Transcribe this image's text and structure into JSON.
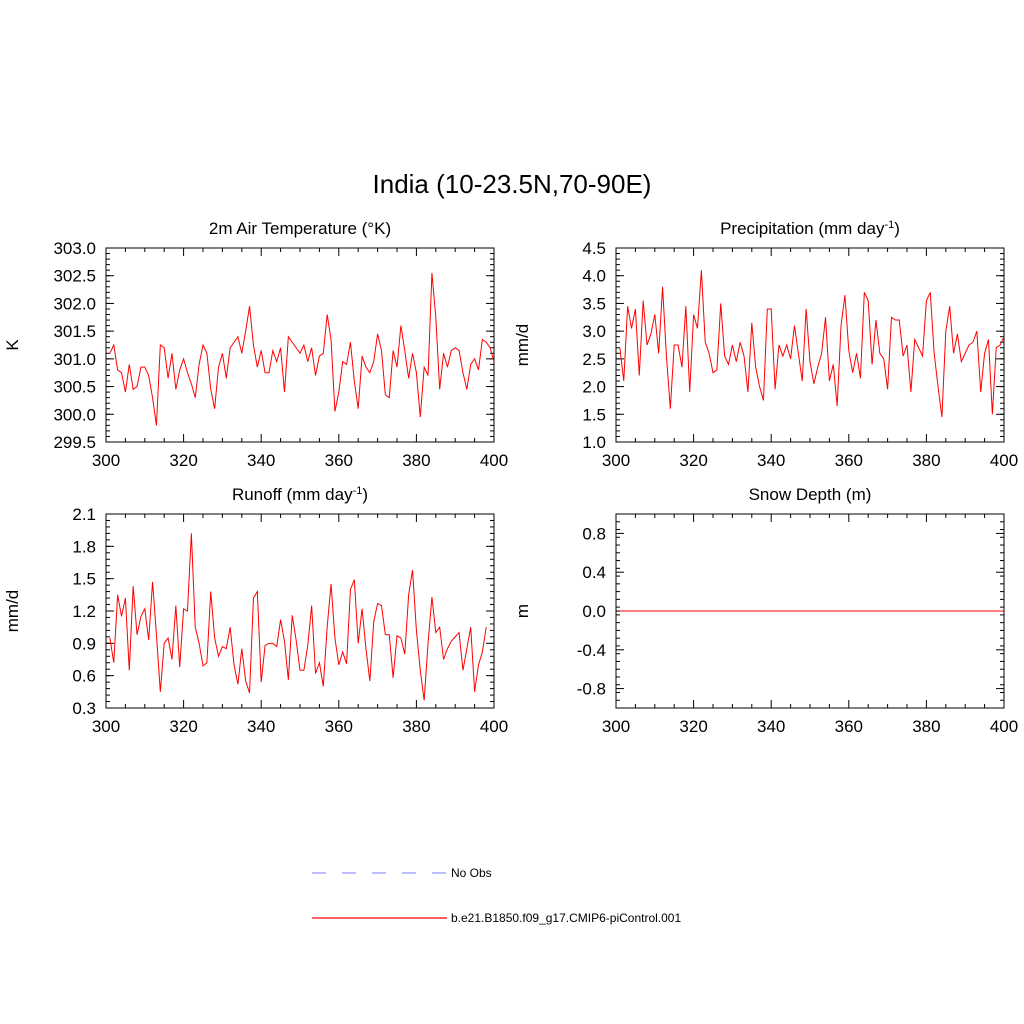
{
  "page_title": "India (10-23.5N,70-90E)",
  "colors": {
    "model_line": "#ff0000",
    "obs_line": "#9999ff",
    "axis": "#000000"
  },
  "chart_data": [
    {
      "type": "line",
      "title": "2m Air Temperature (°K)",
      "ylabel": "K",
      "xlim": [
        300,
        400
      ],
      "ylim": [
        299.5,
        303.0
      ],
      "xticks": [
        "300",
        "320",
        "340",
        "360",
        "380",
        "400"
      ],
      "yticks": [
        "299.5",
        "300.0",
        "300.5",
        "301.0",
        "301.5",
        "302.0",
        "302.5",
        "303.0"
      ],
      "ytick_values": [
        299.5,
        300.0,
        300.5,
        301.0,
        301.5,
        302.0,
        302.5,
        303.0
      ],
      "x_start": 301,
      "series": [
        {
          "name": "b.e21.B1850.f09_g17.CMIP6-piControl.001",
          "values": [
            301.1,
            301.25,
            300.8,
            300.75,
            300.4,
            300.9,
            300.45,
            300.5,
            300.85,
            300.85,
            300.7,
            300.3,
            299.8,
            301.25,
            301.2,
            300.65,
            301.1,
            300.45,
            300.8,
            301.0,
            300.75,
            300.55,
            300.3,
            300.9,
            301.25,
            301.1,
            300.45,
            300.1,
            300.85,
            301.1,
            300.65,
            301.2,
            301.3,
            301.4,
            301.1,
            301.5,
            301.95,
            301.25,
            300.85,
            301.15,
            300.75,
            300.75,
            301.15,
            300.95,
            301.2,
            300.4,
            301.4,
            301.3,
            301.2,
            301.1,
            301.25,
            300.95,
            301.2,
            300.7,
            301.05,
            301.1,
            301.8,
            301.35,
            300.05,
            300.4,
            300.95,
            300.9,
            301.3,
            300.6,
            300.1,
            301.05,
            300.85,
            300.75,
            300.95,
            301.45,
            301.15,
            300.35,
            300.3,
            301.15,
            300.85,
            301.6,
            301.15,
            300.65,
            301.1,
            300.75,
            299.95,
            300.85,
            300.7,
            302.55,
            301.75,
            300.45,
            301.1,
            300.85,
            301.15,
            301.2,
            301.15,
            300.75,
            300.45,
            300.9,
            301.0,
            300.8,
            301.35,
            301.3,
            301.2,
            300.95
          ]
        }
      ]
    },
    {
      "type": "line",
      "title": "Precipitation (mm day",
      "title_sup": "-1",
      "title_end": ")",
      "ylabel": "mm/d",
      "xlim": [
        300,
        400
      ],
      "ylim": [
        1.0,
        4.5
      ],
      "xticks": [
        "300",
        "320",
        "340",
        "360",
        "380",
        "400"
      ],
      "yticks": [
        "1.0",
        "1.5",
        "2.0",
        "2.5",
        "3.0",
        "3.5",
        "4.0",
        "4.5"
      ],
      "ytick_values": [
        1.0,
        1.5,
        2.0,
        2.5,
        3.0,
        3.5,
        4.0,
        4.5
      ],
      "x_start": 301,
      "series": [
        {
          "name": "b.e21.B1850.f09_g17.CMIP6-piControl.001",
          "values": [
            2.7,
            2.1,
            3.45,
            3.05,
            3.4,
            2.2,
            3.55,
            2.75,
            2.95,
            3.3,
            2.6,
            3.8,
            2.55,
            1.6,
            2.75,
            2.75,
            2.35,
            3.45,
            1.9,
            3.3,
            3.05,
            4.1,
            2.8,
            2.6,
            2.25,
            2.3,
            3.5,
            2.55,
            2.4,
            2.75,
            2.45,
            2.8,
            2.55,
            1.9,
            3.15,
            2.35,
            2.0,
            1.75,
            3.4,
            3.4,
            1.95,
            2.75,
            2.55,
            2.75,
            2.5,
            3.1,
            2.6,
            2.1,
            3.4,
            2.45,
            2.05,
            2.35,
            2.6,
            3.25,
            2.1,
            2.4,
            1.65,
            3.1,
            3.65,
            2.65,
            2.25,
            2.6,
            2.15,
            3.7,
            3.55,
            2.4,
            3.2,
            2.6,
            2.5,
            1.95,
            3.25,
            3.2,
            3.2,
            2.55,
            2.75,
            1.9,
            2.85,
            2.7,
            2.55,
            3.55,
            3.7,
            2.6,
            2.0,
            1.45,
            3.0,
            3.45,
            2.6,
            2.95,
            2.45,
            2.6,
            2.75,
            2.8,
            3.0,
            1.9,
            2.6,
            2.85,
            1.5,
            2.7,
            2.75,
            2.9
          ]
        }
      ]
    },
    {
      "type": "line",
      "title": "Runoff (mm day",
      "title_sup": "-1",
      "title_end": ")",
      "ylabel": "mm/d",
      "xlim": [
        300,
        400
      ],
      "ylim": [
        0.3,
        2.1
      ],
      "xticks": [
        "300",
        "320",
        "340",
        "360",
        "380",
        "400"
      ],
      "yticks": [
        "0.3",
        "0.6",
        "0.9",
        "1.2",
        "1.5",
        "1.8",
        "2.1"
      ],
      "ytick_values": [
        0.3,
        0.6,
        0.9,
        1.2,
        1.5,
        1.8,
        2.1
      ],
      "x_start": 301,
      "series": [
        {
          "name": "b.e21.B1850.f09_g17.CMIP6-piControl.001",
          "values": [
            0.95,
            0.72,
            1.35,
            1.15,
            1.32,
            0.65,
            1.43,
            0.98,
            1.15,
            1.22,
            0.93,
            1.47,
            0.98,
            0.45,
            0.9,
            0.95,
            0.75,
            1.25,
            0.68,
            1.22,
            1.2,
            1.92,
            1.05,
            0.9,
            0.69,
            0.72,
            1.38,
            0.95,
            0.78,
            0.87,
            0.85,
            1.05,
            0.7,
            0.52,
            0.85,
            0.55,
            0.44,
            1.32,
            1.38,
            0.54,
            0.88,
            0.9,
            0.9,
            0.87,
            1.12,
            0.92,
            0.56,
            1.16,
            0.93,
            0.65,
            0.65,
            0.88,
            1.25,
            0.62,
            0.72,
            0.5,
            1.05,
            1.45,
            0.95,
            0.7,
            0.82,
            0.71,
            1.4,
            1.49,
            0.9,
            1.22,
            0.85,
            0.55,
            1.1,
            1.27,
            1.25,
            0.98,
            0.98,
            0.58,
            0.97,
            0.95,
            0.8,
            1.35,
            1.58,
            1.02,
            0.65,
            0.37,
            0.9,
            1.33,
            1.0,
            1.05,
            0.75,
            0.85,
            0.92,
            0.96,
            1.0,
            0.65,
            0.85,
            1.05,
            0.45,
            0.7,
            0.82,
            1.05
          ]
        }
      ]
    },
    {
      "type": "line",
      "title": "Snow Depth (m)",
      "ylabel": "m",
      "xlim": [
        300,
        400
      ],
      "ylim": [
        -1.0,
        1.0
      ],
      "xticks": [
        "300",
        "320",
        "340",
        "360",
        "380",
        "400"
      ],
      "yticks": [
        "-0.8",
        "-0.4",
        "0.0",
        "0.4",
        "0.8"
      ],
      "ytick_values": [
        -0.8,
        -0.4,
        0.0,
        0.4,
        0.8
      ],
      "x_start": 301,
      "series": [
        {
          "name": "b.e21.B1850.f09_g17.CMIP6-piControl.001",
          "values": [
            0,
            0,
            0,
            0,
            0,
            0,
            0,
            0,
            0,
            0,
            0,
            0,
            0,
            0,
            0,
            0,
            0,
            0,
            0,
            0,
            0,
            0,
            0,
            0,
            0,
            0,
            0,
            0,
            0,
            0,
            0,
            0,
            0,
            0,
            0,
            0,
            0,
            0,
            0,
            0,
            0,
            0,
            0,
            0,
            0,
            0,
            0,
            0,
            0,
            0,
            0,
            0,
            0,
            0,
            0,
            0,
            0,
            0,
            0,
            0,
            0,
            0,
            0,
            0,
            0,
            0,
            0,
            0,
            0,
            0,
            0,
            0,
            0,
            0,
            0,
            0,
            0,
            0,
            0,
            0,
            0,
            0,
            0,
            0,
            0,
            0,
            0,
            0,
            0,
            0,
            0,
            0,
            0,
            0,
            0,
            0,
            0,
            0,
            0,
            0
          ]
        }
      ]
    }
  ],
  "legend": [
    {
      "label": "No Obs",
      "style": "dashed"
    },
    {
      "label": "b.e21.B1850.f09_g17.CMIP6-piControl.001",
      "style": "solid"
    }
  ]
}
